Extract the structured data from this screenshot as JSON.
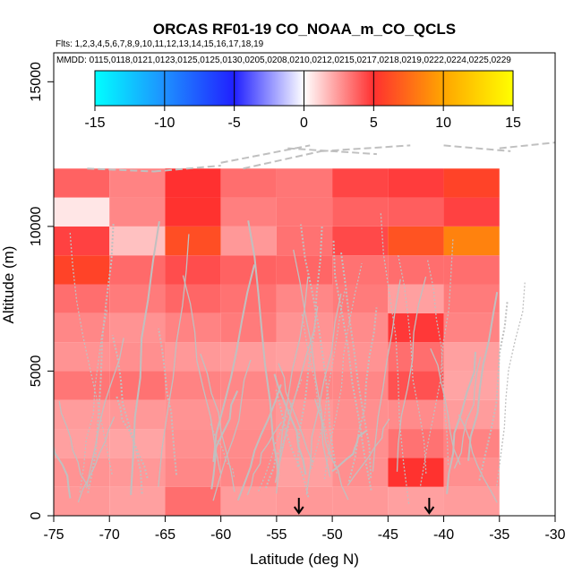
{
  "chart_data": {
    "type": "heatmap",
    "title": "ORCAS RF01-19 CO_NOAA_m_CO_QCLS",
    "flights_label": "Flts: 1,2,3,4,5,6,7,8,9,10,11,12,13,14,15,16,17,18,19",
    "dates_label": "MMDD: 0115,0118,0121,0123,0125,0125,0130,0205,0208,0210,0212,0215,0217,0218,0219,0222,0224,0225,0229",
    "xlabel": "Latitude (deg N)",
    "ylabel": "Altitude (m)",
    "xlim": [
      -75,
      -30
    ],
    "ylim": [
      0,
      16000
    ],
    "xticks": [
      -75,
      -70,
      -65,
      -60,
      -55,
      -50,
      -45,
      -40,
      -35,
      -30
    ],
    "yticks": [
      0,
      5000,
      10000,
      15000
    ],
    "colorbar": {
      "range": [
        -15,
        15
      ],
      "ticks": [
        -15,
        -10,
        -5,
        0,
        5,
        10,
        15
      ],
      "stops": [
        "#00ffff",
        "#1e90ff",
        "#2020ff",
        "#ffffff",
        "#ff3030",
        "#ffa500",
        "#ffff00"
      ]
    },
    "cell_size": {
      "lat": 5,
      "alt_m": 1000
    },
    "lat_edges": [
      -75,
      -70,
      -65,
      -60,
      -55,
      -50,
      -45,
      -40,
      -35
    ],
    "alt_edges": [
      0,
      1000,
      2000,
      3000,
      4000,
      5000,
      6000,
      7000,
      8000,
      9000,
      10000,
      11000,
      12000
    ],
    "values": [
      [
        2.5,
        2.3,
        3.5,
        2.4,
        2.5,
        2.5,
        2.3,
        2.4
      ],
      [
        2.6,
        2.5,
        2.9,
        2.9,
        2.3,
        2.7,
        5.1,
        2.7
      ],
      [
        2.3,
        2.2,
        2.7,
        2.8,
        2.4,
        2.7,
        3.4,
        3.0
      ],
      [
        2.4,
        2.5,
        2.6,
        2.7,
        2.5,
        2.7,
        2.8,
        2.4
      ],
      [
        3.3,
        3.4,
        3.0,
        2.9,
        2.9,
        2.9,
        4.2,
        2.2
      ],
      [
        2.6,
        2.7,
        2.5,
        2.4,
        2.3,
        2.6,
        3.5,
        2.3
      ],
      [
        2.9,
        2.6,
        3.0,
        3.2,
        2.6,
        2.8,
        4.8,
        3.0
      ],
      [
        3.5,
        3.2,
        3.7,
        3.4,
        2.9,
        3.2,
        2.3,
        3.2
      ],
      [
        5.8,
        3.6,
        4.3,
        3.8,
        3.7,
        3.4,
        3.5,
        3.5
      ],
      [
        4.6,
        1.5,
        6.3,
        2.5,
        3.4,
        4.4,
        6.5,
        8.5
      ],
      [
        0.6,
        2.9,
        5.1,
        3.1,
        3.3,
        3.8,
        3.9,
        4.6
      ],
      [
        3.8,
        3.0,
        5.0,
        3.5,
        3.3,
        4.5,
        4.7,
        5.8
      ]
    ],
    "annotations": [
      {
        "type": "arrow",
        "lat": -53,
        "label": "down-arrow"
      },
      {
        "type": "arrow",
        "lat": -41.3,
        "label": "down-arrow"
      }
    ]
  }
}
